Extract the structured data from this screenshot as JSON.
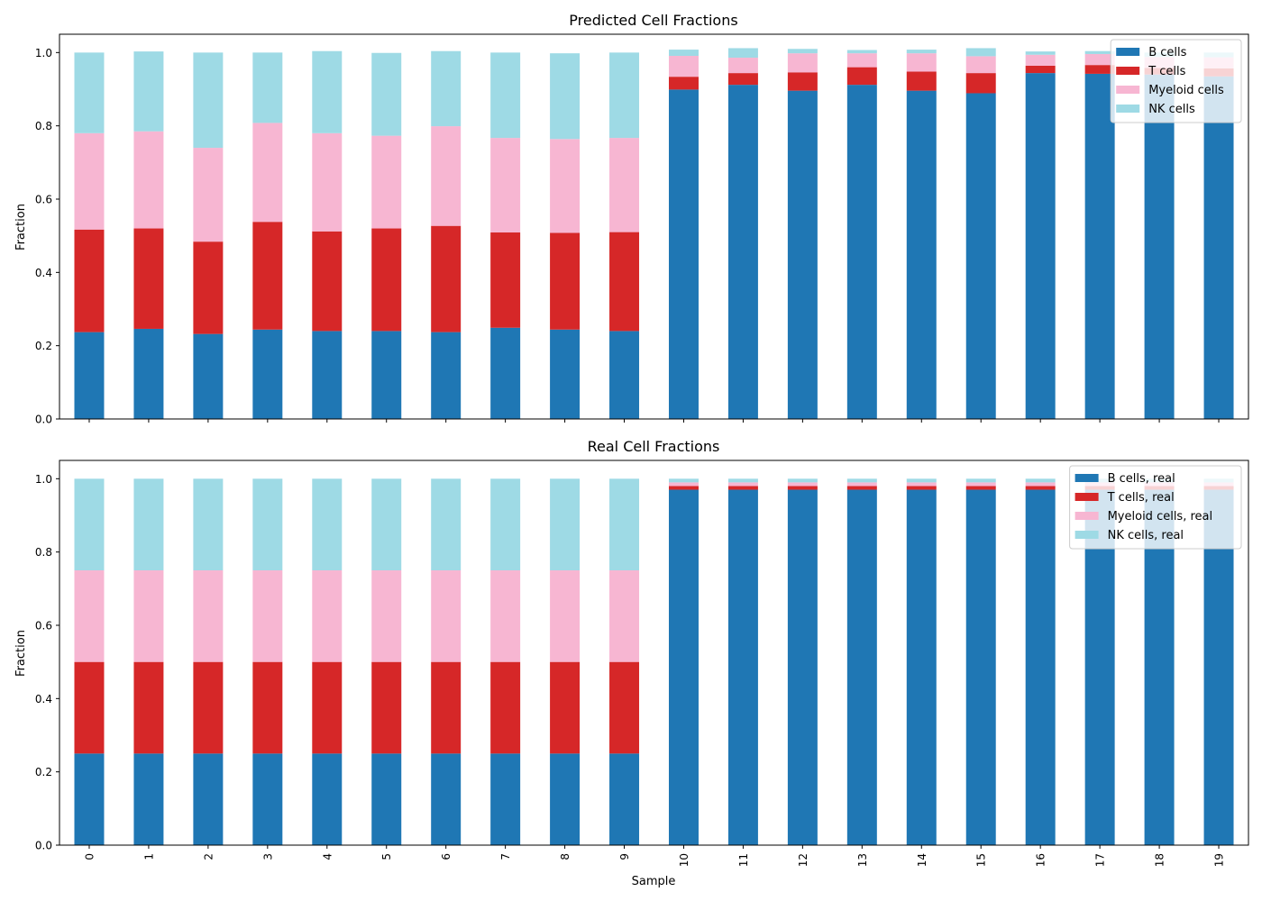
{
  "figure": {
    "xlabel": "Sample",
    "colors": [
      "#1f77b4",
      "#d62728",
      "#f7b6d2",
      "#9edae5"
    ]
  },
  "chart_data": [
    {
      "type": "bar",
      "stacked": true,
      "title": "Predicted Cell Fractions",
      "xlabel": "",
      "ylabel": "Fraction",
      "ylim": [
        0,
        1.05
      ],
      "yticks": [
        "0.0",
        "0.2",
        "0.4",
        "0.6",
        "0.8",
        "1.0"
      ],
      "legend": "top-right",
      "categories": [
        "0",
        "1",
        "2",
        "3",
        "4",
        "5",
        "6",
        "7",
        "8",
        "9",
        "10",
        "11",
        "12",
        "13",
        "14",
        "15",
        "16",
        "17",
        "18",
        "19"
      ],
      "series": [
        {
          "name": "B cells",
          "color": "#1f77b4",
          "values": [
            0.237,
            0.246,
            0.232,
            0.244,
            0.24,
            0.24,
            0.237,
            0.249,
            0.244,
            0.24,
            0.899,
            0.912,
            0.896,
            0.912,
            0.896,
            0.889,
            0.944,
            0.942,
            0.94,
            0.935
          ]
        },
        {
          "name": "T cells",
          "color": "#d62728",
          "values": [
            0.28,
            0.274,
            0.252,
            0.294,
            0.272,
            0.28,
            0.29,
            0.26,
            0.264,
            0.27,
            0.035,
            0.032,
            0.05,
            0.048,
            0.052,
            0.055,
            0.02,
            0.024,
            0.018,
            0.022
          ]
        },
        {
          "name": "Myeloid cells",
          "color": "#f7b6d2",
          "values": [
            0.263,
            0.265,
            0.256,
            0.27,
            0.268,
            0.253,
            0.272,
            0.258,
            0.256,
            0.257,
            0.057,
            0.042,
            0.052,
            0.038,
            0.05,
            0.046,
            0.03,
            0.03,
            0.03,
            0.03
          ]
        },
        {
          "name": "NK cells",
          "color": "#9edae5",
          "values": [
            0.22,
            0.218,
            0.26,
            0.192,
            0.224,
            0.226,
            0.205,
            0.233,
            0.234,
            0.233,
            0.017,
            0.026,
            0.012,
            0.009,
            0.01,
            0.022,
            0.009,
            0.008,
            0.012,
            0.013
          ]
        }
      ]
    },
    {
      "type": "bar",
      "stacked": true,
      "title": "Real Cell Fractions",
      "xlabel": "Sample",
      "ylabel": "Fraction",
      "ylim": [
        0,
        1.05
      ],
      "yticks": [
        "0.0",
        "0.2",
        "0.4",
        "0.6",
        "0.8",
        "1.0"
      ],
      "legend": "top-right",
      "categories": [
        "0",
        "1",
        "2",
        "3",
        "4",
        "5",
        "6",
        "7",
        "8",
        "9",
        "10",
        "11",
        "12",
        "13",
        "14",
        "15",
        "16",
        "17",
        "18",
        "19"
      ],
      "series": [
        {
          "name": "B cells, real",
          "color": "#1f77b4",
          "values": [
            0.25,
            0.25,
            0.25,
            0.25,
            0.25,
            0.25,
            0.25,
            0.25,
            0.25,
            0.25,
            0.97,
            0.97,
            0.97,
            0.97,
            0.97,
            0.97,
            0.97,
            0.97,
            0.97,
            0.97
          ]
        },
        {
          "name": "T cells, real",
          "color": "#d62728",
          "values": [
            0.25,
            0.25,
            0.25,
            0.25,
            0.25,
            0.25,
            0.25,
            0.25,
            0.25,
            0.25,
            0.01,
            0.01,
            0.01,
            0.01,
            0.01,
            0.01,
            0.01,
            0.01,
            0.01,
            0.01
          ]
        },
        {
          "name": "Myeloid cells, real",
          "color": "#f7b6d2",
          "values": [
            0.25,
            0.25,
            0.25,
            0.25,
            0.25,
            0.25,
            0.25,
            0.25,
            0.25,
            0.25,
            0.01,
            0.01,
            0.01,
            0.01,
            0.01,
            0.01,
            0.01,
            0.01,
            0.01,
            0.01
          ]
        },
        {
          "name": "NK cells, real",
          "color": "#9edae5",
          "values": [
            0.25,
            0.25,
            0.25,
            0.25,
            0.25,
            0.25,
            0.25,
            0.25,
            0.25,
            0.25,
            0.01,
            0.01,
            0.01,
            0.01,
            0.01,
            0.01,
            0.01,
            0.01,
            0.01,
            0.01
          ]
        }
      ]
    }
  ]
}
